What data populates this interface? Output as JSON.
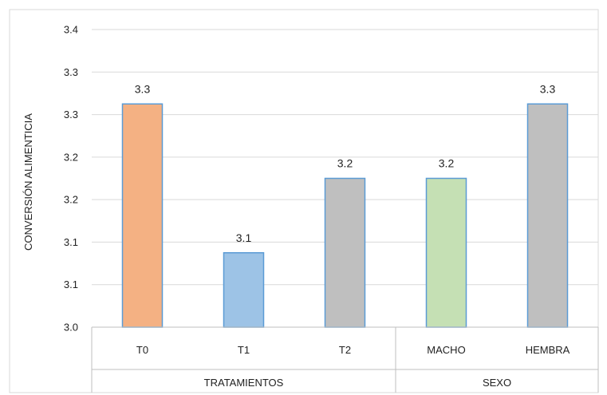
{
  "chart_data": {
    "type": "bar",
    "title": "",
    "xlabel": "",
    "ylabel": "CONVERSIÓN ALIMENTICIA",
    "ylim": [
      3.0,
      3.4
    ],
    "grid": true,
    "legend": "none",
    "y_ticks": [
      "3.0",
      "3.1",
      "3.1",
      "3.2",
      "3.2",
      "3.3",
      "3.3",
      "3.4"
    ],
    "categories": [
      "T0",
      "T1",
      "T2",
      "MACHO",
      "HEMBRA"
    ],
    "values": [
      3.3,
      3.1,
      3.2,
      3.2,
      3.3
    ],
    "data_labels": [
      "3.3",
      "3.1",
      "3.2",
      "3.2",
      "3.3"
    ],
    "groups": [
      {
        "label": "TRATAMIENTOS",
        "categories": [
          "T0",
          "T1",
          "T2"
        ]
      },
      {
        "label": "SEXO",
        "categories": [
          "MACHO",
          "HEMBRA"
        ]
      }
    ],
    "bar_colors": [
      "#f4b183",
      "#9dc3e6",
      "#bfbfbf",
      "#c5e0b4",
      "#bfbfbf"
    ],
    "bar_border": "#5b9bd5"
  }
}
